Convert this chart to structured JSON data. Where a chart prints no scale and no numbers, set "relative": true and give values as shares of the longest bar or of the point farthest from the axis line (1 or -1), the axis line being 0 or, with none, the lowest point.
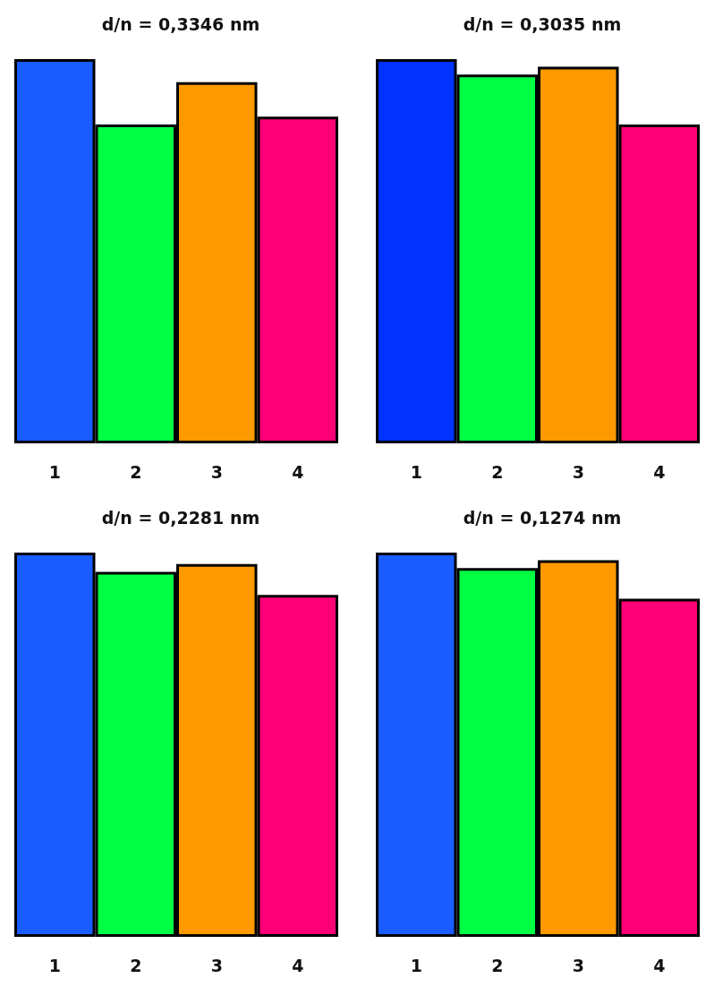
{
  "chart_data": [
    {
      "type": "bar",
      "title": "d/n = 0,3346 nm",
      "categories": [
        "1",
        "2",
        "3",
        "4"
      ],
      "values": [
        1,
        0.83,
        0.94,
        0.85
      ],
      "colors": [
        "#1a5cff",
        "#00ff44",
        "#ff9900",
        "#ff0077"
      ],
      "relative": true
    },
    {
      "type": "bar",
      "title": "d/n = 0,3035 nm",
      "categories": [
        "1",
        "2",
        "3",
        "4"
      ],
      "values": [
        1,
        0.96,
        0.98,
        0.83
      ],
      "colors": [
        "#0033ff",
        "#00ff44",
        "#ff9900",
        "#ff0077"
      ],
      "relative": true
    },
    {
      "type": "bar",
      "title": "d/n = 0,2281 nm",
      "categories": [
        "1",
        "2",
        "3",
        "4"
      ],
      "values": [
        1,
        0.95,
        0.97,
        0.89
      ],
      "colors": [
        "#1a5cff",
        "#00ff44",
        "#ff9900",
        "#ff0077"
      ],
      "relative": true
    },
    {
      "type": "bar",
      "title": "d/n = 0,1274 nm",
      "categories": [
        "1",
        "2",
        "3",
        "4"
      ],
      "values": [
        1,
        0.96,
        0.98,
        0.88
      ],
      "colors": [
        "#1a5cff",
        "#00ff44",
        "#ff9900",
        "#ff0077"
      ],
      "relative": true
    }
  ]
}
